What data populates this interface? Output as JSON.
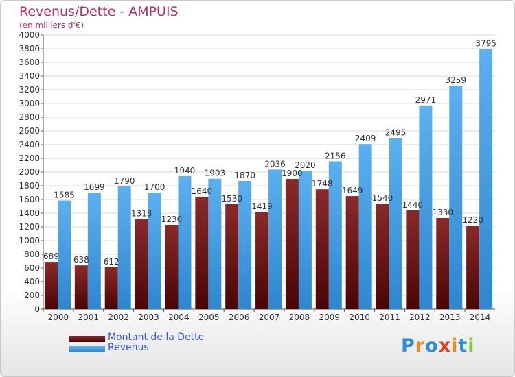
{
  "header": {
    "title": "Revenus/Dette - AMPUIS",
    "subtitle": "(en milliers d'€)"
  },
  "legend": {
    "items": [
      {
        "label": "Montant de la Dette",
        "color": "#7a1010"
      },
      {
        "label": "Revenus",
        "color": "#4aa3e8"
      }
    ]
  },
  "logo": {
    "letters": [
      "P",
      "r",
      "o",
      "x",
      "i",
      "t",
      "i"
    ],
    "colors": [
      "#2b8fd6",
      "#f08a1c",
      "#2b8fd6",
      "#e23a1e",
      "#f08a1c",
      "#2b8fd6",
      "#8bc43f"
    ]
  },
  "chart_data": {
    "type": "bar",
    "title": "Revenus/Dette - AMPUIS",
    "subtitle": "(en milliers d'€)",
    "categories": [
      "2000",
      "2001",
      "2002",
      "2003",
      "2004",
      "2005",
      "2006",
      "2007",
      "2008",
      "2009",
      "2010",
      "2011",
      "2012",
      "2013",
      "2014"
    ],
    "series": [
      {
        "name": "Montant de la Dette",
        "color": "#7a1010",
        "values": [
          689,
          638,
          612,
          1313,
          1230,
          1640,
          1530,
          1419,
          1900,
          1748,
          1649,
          1540,
          1440,
          1330,
          1220
        ],
        "labels": [
          "689",
          "638",
          "612",
          "1313",
          "1230",
          "1640",
          "1530",
          "1419",
          "1900",
          "1748",
          "1649",
          "1540",
          "1440",
          "1330",
          "1220"
        ]
      },
      {
        "name": "Revenus",
        "color": "#4aa3e8",
        "values": [
          1585,
          1699,
          1790,
          1700,
          1940,
          1903,
          1870,
          2036,
          2020,
          2156,
          2409,
          2495,
          2971,
          3259,
          3795
        ],
        "labels": [
          "1585",
          "1699",
          "1790",
          "1700",
          "1940",
          "1903",
          "1870",
          "2036",
          "2020",
          "2156",
          "2409",
          "2495",
          "2971",
          "3259",
          "3795"
        ]
      }
    ],
    "ylim": [
      0,
      4000
    ],
    "yticks": [
      "0",
      "200",
      "400",
      "600",
      "800",
      "1000",
      "1200",
      "1400",
      "1600",
      "1800",
      "2000",
      "2200",
      "2400",
      "2600",
      "2800",
      "3000",
      "3200",
      "3400",
      "3600",
      "3800",
      "4000"
    ],
    "grid": true,
    "legend_position": "bottom-left"
  }
}
